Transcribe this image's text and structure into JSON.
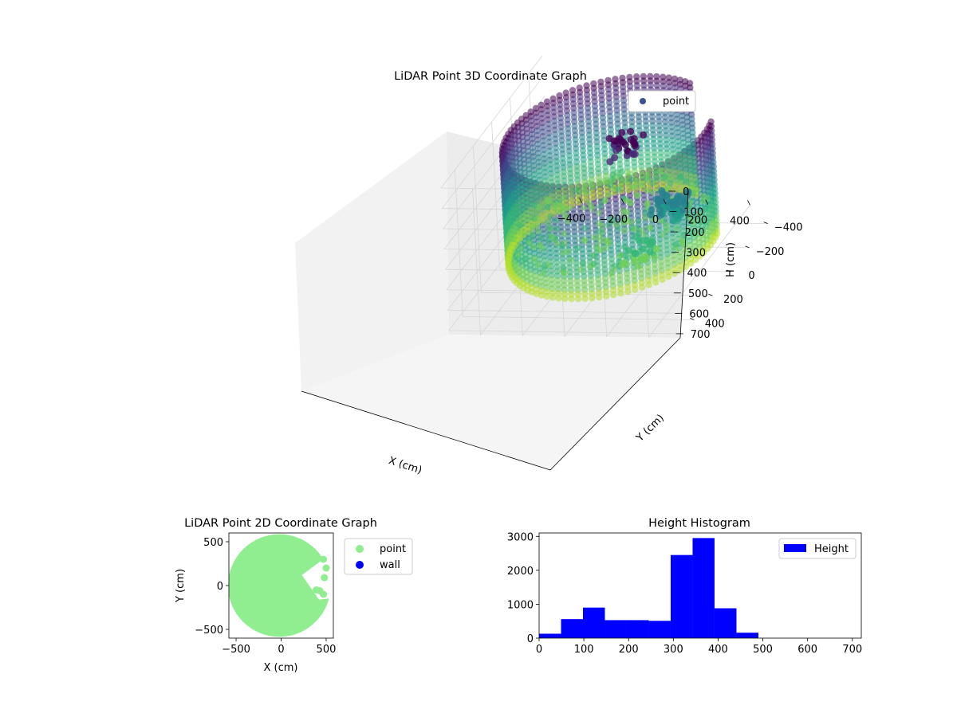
{
  "chart_data": [
    {
      "type": "scatter3d",
      "title": "LiDAR Point 3D Coordinate Graph",
      "xlabel": "X (cm)",
      "ylabel": "Y (cm)",
      "zlabel": "H (cm)",
      "x_ticks": [
        -400,
        -200,
        0,
        200,
        400
      ],
      "y_ticks": [
        -400,
        -200,
        0,
        200,
        400
      ],
      "z_ticks": [
        0,
        100,
        200,
        300,
        400,
        500,
        600,
        700
      ],
      "xlim": [
        -550,
        550
      ],
      "ylim": [
        -550,
        550
      ],
      "zlim": [
        0,
        720
      ],
      "z_inverted": true,
      "colormap": "viridis",
      "grid": true,
      "legend": {
        "position": "top-right",
        "entries": [
          {
            "label": "point",
            "color": "#3b528b"
          }
        ]
      },
      "wall": {
        "radius": 460,
        "gap_start_deg": 300,
        "gap_end_deg": 345,
        "h_top": 40,
        "h_bottom": 590
      },
      "floor_height": 470,
      "clusters": [
        {
          "x": 120,
          "y": 90,
          "h": 60,
          "count": 30
        },
        {
          "x": 330,
          "y": 120,
          "h": 330,
          "count": 60
        },
        {
          "x": 250,
          "y": 250,
          "h": 470,
          "count": 20
        }
      ]
    },
    {
      "type": "scatter",
      "title": "LiDAR Point 2D Coordinate Graph",
      "xlabel": "X (cm)",
      "ylabel": "Y (cm)",
      "x_ticks": [
        -500,
        0,
        500
      ],
      "y_ticks": [
        500,
        0,
        -500
      ],
      "xlim": [
        -580,
        580
      ],
      "ylim": [
        -600,
        600
      ],
      "legend": {
        "position": "outside-right",
        "entries": [
          {
            "label": "point",
            "color": "#90ee90"
          },
          {
            "label": "wall",
            "color": "#0000ff"
          }
        ]
      },
      "series": [
        {
          "name": "point",
          "color": "#90ee90",
          "disc_radius": 570
        },
        {
          "name": "wall",
          "color": "#0000ff",
          "values": []
        }
      ]
    },
    {
      "type": "bar",
      "title": "Height Histogram",
      "xlabel": "",
      "ylabel": "",
      "x_ticks": [
        0,
        100,
        200,
        300,
        400,
        500,
        600,
        700
      ],
      "y_ticks": [
        0,
        1000,
        2000,
        3000
      ],
      "xlim": [
        0,
        720
      ],
      "ylim": [
        0,
        3100
      ],
      "color": "#0000ff",
      "legend": {
        "position": "top-right",
        "entries": [
          {
            "label": "Height",
            "color": "#0000ff"
          }
        ]
      },
      "bin_edges": [
        0,
        49,
        98,
        147,
        196,
        245,
        294,
        343,
        392,
        441,
        490,
        539,
        588,
        637,
        686
      ],
      "values": [
        130,
        560,
        900,
        530,
        530,
        510,
        2450,
        2950,
        880,
        160,
        0,
        0,
        0,
        0
      ]
    }
  ]
}
